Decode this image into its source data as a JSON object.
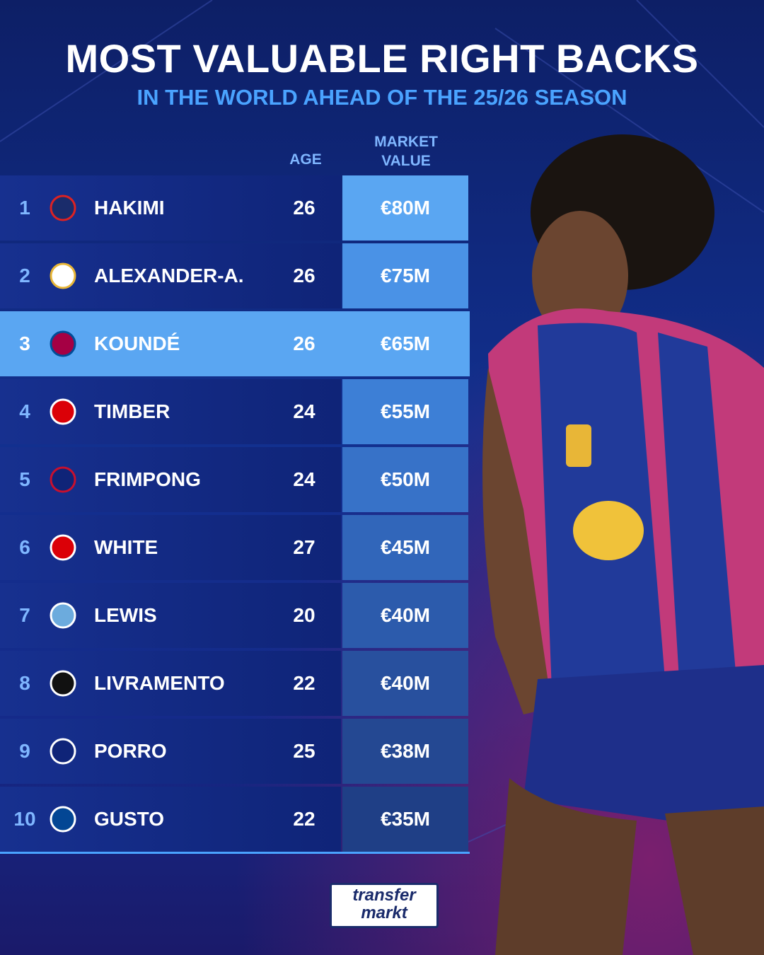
{
  "header": {
    "title": "MOST VALUABLE RIGHT BACKS",
    "subtitle": "IN THE WORLD AHEAD OF THE 25/26 SEASON"
  },
  "table": {
    "columns": {
      "age": "AGE",
      "market_value": "MARKET VALUE"
    },
    "rows": [
      {
        "rank": "1",
        "player": "HAKIMI",
        "age": "26",
        "value": "€80M"
      },
      {
        "rank": "2",
        "player": "ALEXANDER-A.",
        "age": "26",
        "value": "€75M"
      },
      {
        "rank": "3",
        "player": "KOUNDÉ",
        "age": "26",
        "value": "€65M"
      },
      {
        "rank": "4",
        "player": "TIMBER",
        "age": "24",
        "value": "€55M"
      },
      {
        "rank": "5",
        "player": "FRIMPONG",
        "age": "24",
        "value": "€50M"
      },
      {
        "rank": "6",
        "player": "WHITE",
        "age": "27",
        "value": "€45M"
      },
      {
        "rank": "7",
        "player": "LEWIS",
        "age": "20",
        "value": "€40M"
      },
      {
        "rank": "8",
        "player": "LIVRAMENTO",
        "age": "22",
        "value": "€40M"
      },
      {
        "rank": "9",
        "player": "PORRO",
        "age": "25",
        "value": "€38M"
      },
      {
        "rank": "10",
        "player": "GUSTO",
        "age": "22",
        "value": "€35M"
      }
    ]
  },
  "logo": {
    "line1": "transfer",
    "line2": "markt"
  }
}
